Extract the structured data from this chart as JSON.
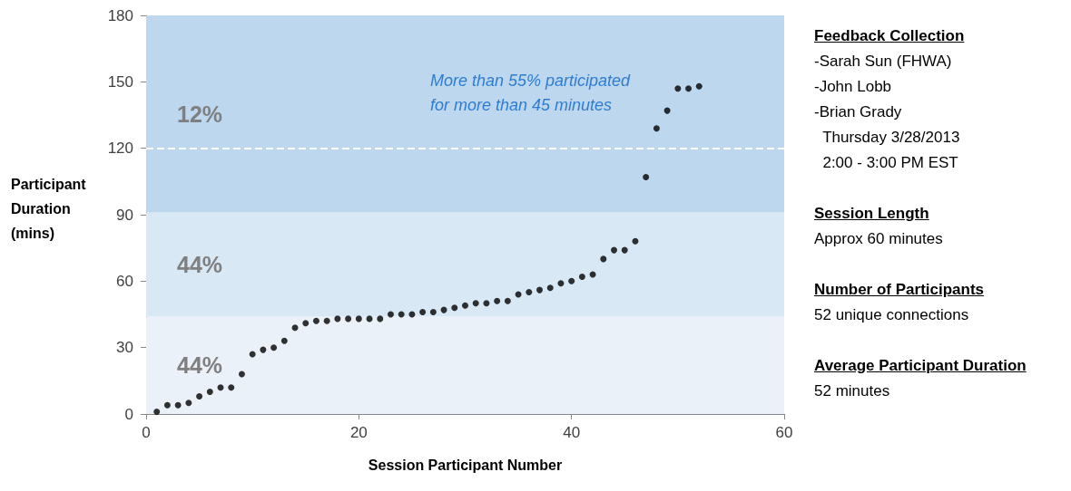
{
  "chart_data": [
    {
      "type": "scatter",
      "xlabel": "Session Participant Number",
      "ylabel": "Participant Duration (mins)",
      "x": [
        1,
        2,
        3,
        4,
        5,
        6,
        7,
        8,
        9,
        10,
        11,
        12,
        13,
        14,
        15,
        16,
        17,
        18,
        19,
        20,
        21,
        22,
        23,
        24,
        25,
        26,
        27,
        28,
        29,
        30,
        31,
        32,
        33,
        34,
        35,
        36,
        37,
        38,
        39,
        40,
        41,
        42,
        43,
        44,
        45,
        46,
        47,
        48,
        49,
        50,
        51,
        52
      ],
      "values": [
        1,
        4,
        4,
        5,
        8,
        10,
        12,
        12,
        18,
        27,
        29,
        30,
        33,
        39,
        41,
        42,
        42,
        43,
        43,
        43,
        43,
        43,
        45,
        45,
        45,
        46,
        46,
        47,
        48,
        49,
        50,
        50,
        51,
        51,
        54,
        55,
        56,
        57,
        59,
        60,
        62,
        63,
        70,
        74,
        74,
        78,
        107,
        129,
        137,
        147,
        147,
        148
      ],
      "color": "#000000",
      "marker": "circle",
      "xlim": [
        0,
        60
      ],
      "xticks": [
        0,
        20,
        40,
        60
      ],
      "ylim": [
        0,
        180
      ],
      "yticks": [
        0,
        30,
        60,
        90,
        120,
        150,
        180
      ],
      "bands": [
        {
          "axis": "y",
          "from": 0,
          "to": 44,
          "label": "44%",
          "color": "#ebf1f9"
        },
        {
          "axis": "y",
          "from": 44,
          "to": 91,
          "label": "44%",
          "color": "#d9e8f5"
        },
        {
          "axis": "y",
          "from": 91,
          "to": 180,
          "label": "12%",
          "color": "#bdd7ee"
        }
      ],
      "ref_lines": [
        {
          "axis": "y",
          "value": 120,
          "color": "#ffffff",
          "line_style": "dashed"
        }
      ],
      "annotations": [
        "More than 55% participated for more than 45 minutes"
      ]
    },
    {
      "type": "other",
      "annotations": [
        "Feedback Collection\n-Sarah Sun (FHWA)\n-John Lobb\n-Brian Grady\n  Thursday 3/28/2013\n  2:00 - 3:00 PM EST",
        "Session Length\nApprox 60 minutes",
        "Number of Participants\n52 unique connections",
        "Average Participant Duration\n52 minutes"
      ]
    }
  ]
}
